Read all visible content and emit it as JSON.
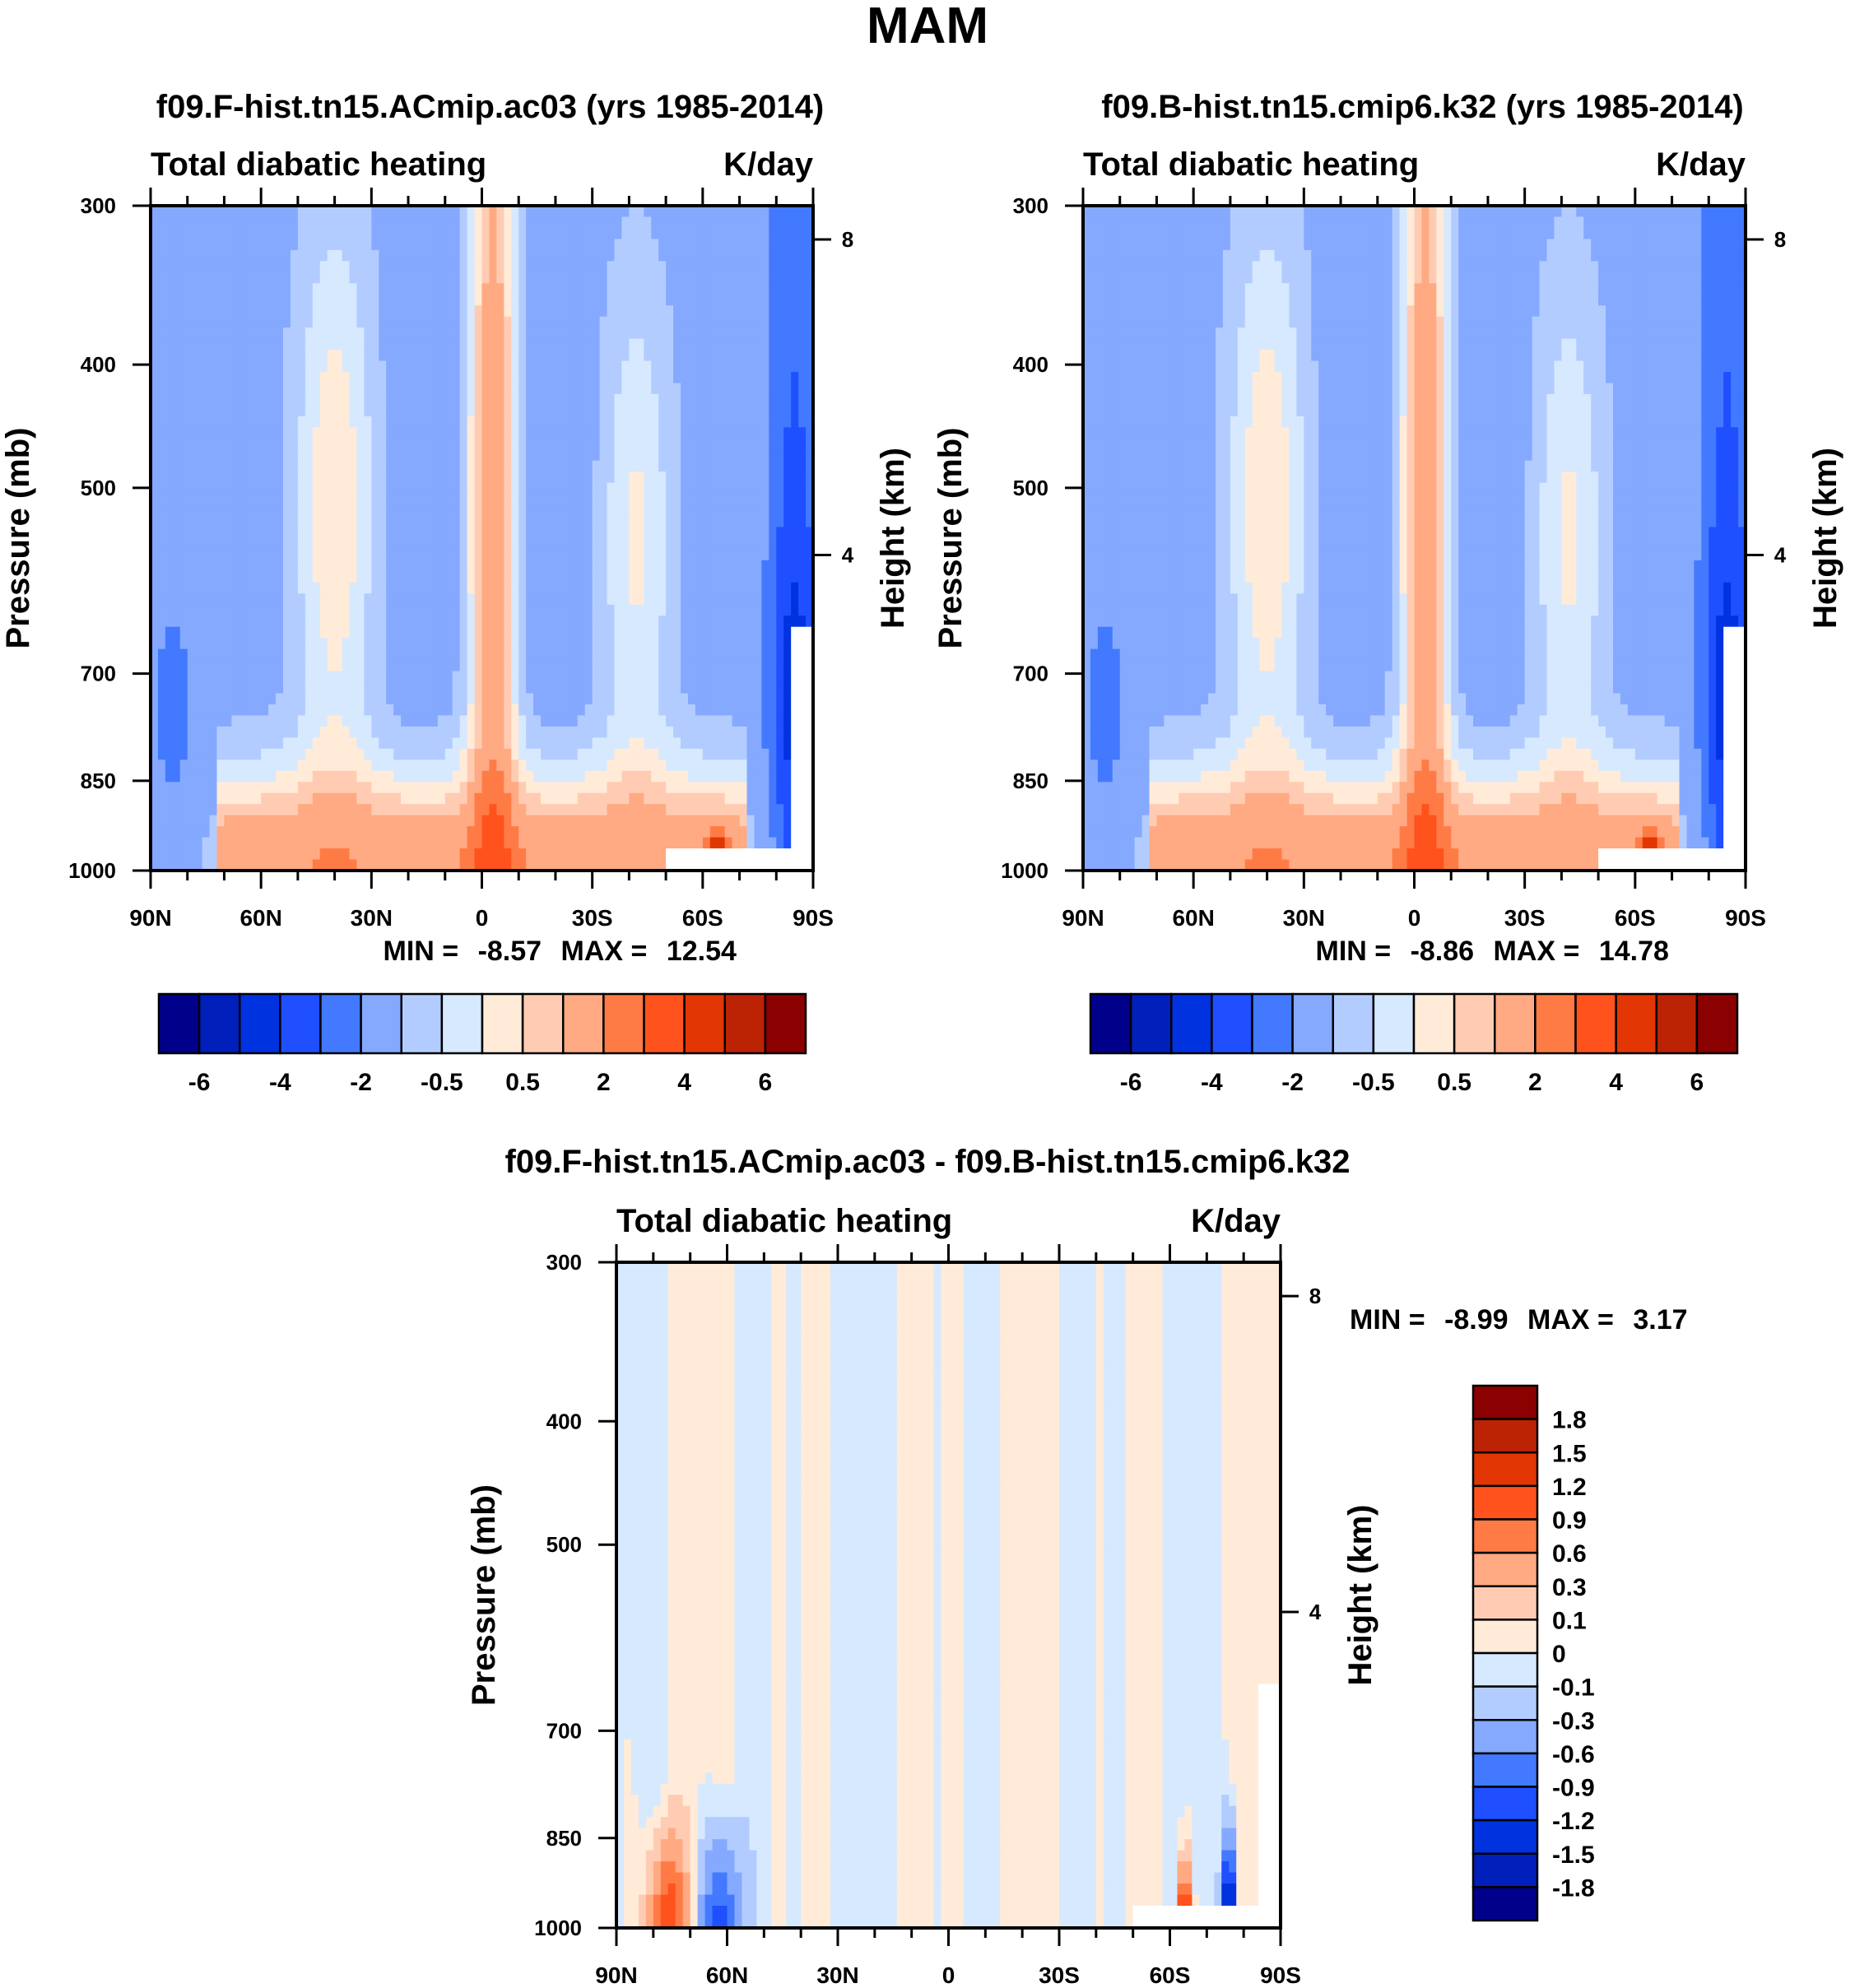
{
  "chart_data": {
    "type": "heatmap",
    "title": "MAM",
    "colors": {
      "palette_16": [
        "#00008b",
        "#001fbb",
        "#0032e0",
        "#1f4fff",
        "#4279ff",
        "#85a9ff",
        "#b3ccff",
        "#d6e9ff",
        "#ffebd8",
        "#ffccb3",
        "#ffaa83",
        "#ff7b46",
        "#ff521c",
        "#e33605",
        "#bb2304",
        "#8b0000"
      ]
    },
    "panels": [
      {
        "id": "model-a",
        "title": "f09.F-hist.tn15.ACmip.ac03 (yrs 1985-2014)",
        "left_string": "Total diabatic heating",
        "right_string": "K/day",
        "ylabel": "Pressure (mb)",
        "ylabel_right": "Height (km)",
        "xticks": [
          "90N",
          "60N",
          "30N",
          "0",
          "30S",
          "60S",
          "90S"
        ],
        "x_values": [
          90,
          60,
          30,
          0,
          -30,
          -60,
          -90
        ],
        "yticks": [
          "300",
          "400",
          "500",
          "700",
          "850",
          "1000"
        ],
        "y_values": [
          300,
          400,
          500,
          700,
          850,
          1000
        ],
        "yticks_right": [
          "8",
          "4"
        ],
        "y_right_values": [
          8,
          4
        ],
        "ylim": [
          1000,
          300
        ],
        "xlim": [
          90,
          -90
        ],
        "min_label": "MIN =",
        "min_value": "-8.57",
        "max_label": "MAX =",
        "max_value": "12.54",
        "colorbar": {
          "orientation": "horizontal",
          "levels": [
            -7,
            -6,
            -5,
            -4,
            -3,
            -2,
            -1,
            -0.5,
            0,
            0.5,
            1,
            2,
            3,
            4,
            5,
            6,
            7
          ],
          "labels": [
            "-6",
            "-4",
            "-2",
            "-0.5",
            "0.5",
            "2",
            "4",
            "6"
          ]
        }
      },
      {
        "id": "model-b",
        "title": "f09.B-hist.tn15.cmip6.k32 (yrs 1985-2014)",
        "left_string": "Total diabatic heating",
        "right_string": "K/day",
        "ylabel": "Pressure (mb)",
        "ylabel_right": "Height (km)",
        "xticks": [
          "90N",
          "60N",
          "30N",
          "0",
          "30S",
          "60S",
          "90S"
        ],
        "x_values": [
          90,
          60,
          30,
          0,
          -30,
          -60,
          -90
        ],
        "yticks": [
          "300",
          "400",
          "500",
          "700",
          "850",
          "1000"
        ],
        "y_values": [
          300,
          400,
          500,
          700,
          850,
          1000
        ],
        "yticks_right": [
          "8",
          "4"
        ],
        "y_right_values": [
          8,
          4
        ],
        "ylim": [
          1000,
          300
        ],
        "xlim": [
          90,
          -90
        ],
        "min_label": "MIN =",
        "min_value": "-8.86",
        "max_label": "MAX =",
        "max_value": "14.78",
        "colorbar": {
          "orientation": "horizontal",
          "levels": [
            -7,
            -6,
            -5,
            -4,
            -3,
            -2,
            -1,
            -0.5,
            0,
            0.5,
            1,
            2,
            3,
            4,
            5,
            6,
            7
          ],
          "labels": [
            "-6",
            "-4",
            "-2",
            "-0.5",
            "0.5",
            "2",
            "4",
            "6"
          ]
        }
      },
      {
        "id": "difference",
        "title": "f09.F-hist.tn15.ACmip.ac03 - f09.B-hist.tn15.cmip6.k32",
        "left_string": "Total diabatic heating",
        "right_string": "K/day",
        "ylabel": "Pressure (mb)",
        "ylabel_right": "Height (km)",
        "xticks": [
          "90N",
          "60N",
          "30N",
          "0",
          "30S",
          "60S",
          "90S"
        ],
        "x_values": [
          90,
          60,
          30,
          0,
          -30,
          -60,
          -90
        ],
        "yticks": [
          "300",
          "400",
          "500",
          "700",
          "850",
          "1000"
        ],
        "y_values": [
          300,
          400,
          500,
          700,
          850,
          1000
        ],
        "yticks_right": [
          "8",
          "4"
        ],
        "y_right_values": [
          8,
          4
        ],
        "ylim": [
          1000,
          300
        ],
        "xlim": [
          90,
          -90
        ],
        "min_label": "MIN =",
        "min_value": "-8.99",
        "max_label": "MAX =",
        "max_value": "3.17",
        "colorbar": {
          "orientation": "vertical",
          "labels": [
            "1.8",
            "1.5",
            "1.2",
            "0.9",
            "0.6",
            "0.3",
            "0.1",
            "0",
            "-0.1",
            "-0.3",
            "-0.6",
            "-0.9",
            "-1.2",
            "-1.5",
            "-1.8"
          ]
        }
      }
    ]
  }
}
